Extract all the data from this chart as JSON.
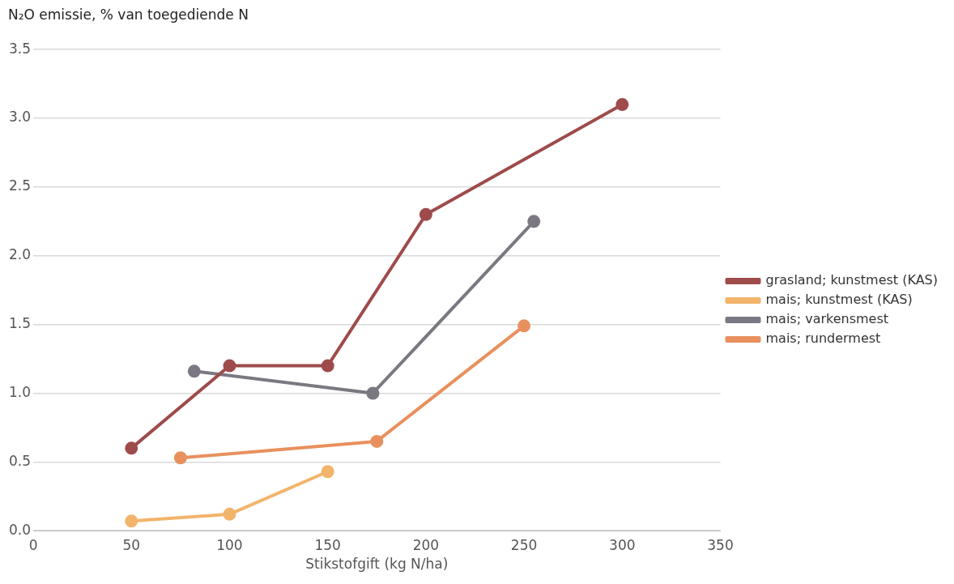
{
  "chart_data": {
    "type": "line",
    "ylabel": "N₂O emissie, % van toegediende N",
    "xlabel": "Stikstofgift (kg N/ha)",
    "xlim": [
      0,
      350
    ],
    "xticks": [
      0,
      50,
      100,
      150,
      200,
      250,
      300,
      350
    ],
    "ylim": [
      0,
      3.5
    ],
    "yticks": [
      {
        "value": 0,
        "label": "0.0"
      },
      {
        "value": 0.5,
        "label": "0.5"
      },
      {
        "value": 1,
        "label": "1.0"
      },
      {
        "value": 1.5,
        "label": "1.5"
      },
      {
        "value": 2,
        "label": "2.0"
      },
      {
        "value": 2.5,
        "label": "2.5"
      },
      {
        "value": 3,
        "label": "3.0"
      },
      {
        "value": 3.5,
        "label": "3.5"
      }
    ],
    "grid": "y",
    "legend": "right",
    "marker": "circle",
    "line_style": "solid",
    "series": [
      {
        "name": "grasland; kunstmest (KAS)",
        "color": "#9e4b4b",
        "x": [
          50,
          100,
          150,
          200,
          300
        ],
        "values": [
          0.6,
          1.2,
          1.2,
          2.3,
          3.1
        ]
      },
      {
        "name": "mais; kunstmest (KAS)",
        "color": "#f2b46b",
        "x": [
          50,
          100,
          150
        ],
        "values": [
          0.07,
          0.12,
          0.43
        ]
      },
      {
        "name": "mais; varkensmest",
        "color": "#7b7882",
        "x": [
          82,
          173,
          255
        ],
        "values": [
          1.16,
          1.0,
          2.25
        ]
      },
      {
        "name": "mais; rundermest",
        "color": "#e8905e",
        "x": [
          75,
          175,
          250
        ],
        "values": [
          0.53,
          0.65,
          1.49
        ]
      }
    ]
  }
}
